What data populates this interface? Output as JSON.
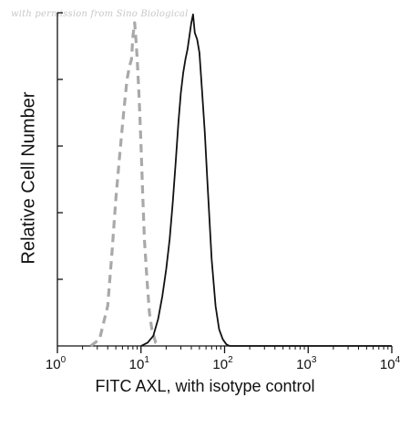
{
  "watermark": "with permission from Sino Biological",
  "chart_data": {
    "type": "line",
    "xlabel": "FITC AXL, with isotype control",
    "ylabel": "Relative Cell Number",
    "xscale": "log",
    "xlim": [
      1,
      10000
    ],
    "ylim": [
      0,
      1
    ],
    "grid": false,
    "x_ticks": [
      {
        "base": "10",
        "exp": "0",
        "value": 1
      },
      {
        "base": "10",
        "exp": "1",
        "value": 10
      },
      {
        "base": "10",
        "exp": "2",
        "value": 100
      },
      {
        "base": "10",
        "exp": "3",
        "value": 1000
      },
      {
        "base": "10",
        "exp": "4",
        "value": 10000
      }
    ],
    "series": [
      {
        "style": "dashed",
        "color": "#a9a9a9",
        "x": [
          2.5,
          3.2,
          4.0,
          4.5,
          5.0,
          5.6,
          6.2,
          6.8,
          7.3,
          7.7,
          8.0,
          8.4,
          8.7,
          9.0,
          9.3,
          9.6,
          10.0,
          10.5,
          11.0,
          11.8,
          12.6,
          13.5,
          15.0,
          17.0
        ],
        "y": [
          0.0,
          0.02,
          0.12,
          0.28,
          0.44,
          0.58,
          0.7,
          0.8,
          0.84,
          0.86,
          0.93,
          0.97,
          0.92,
          0.86,
          0.79,
          0.72,
          0.6,
          0.45,
          0.32,
          0.2,
          0.1,
          0.05,
          0.01,
          0.0
        ]
      },
      {
        "style": "solid",
        "color": "#111111",
        "x": [
          10,
          12,
          14,
          16,
          18,
          20,
          22,
          24,
          26,
          28,
          30,
          32,
          34,
          36,
          38,
          40,
          42,
          44,
          47,
          50,
          54,
          58,
          62,
          66,
          70,
          78,
          86,
          95,
          105,
          115,
          1000,
          10000
        ],
        "y": [
          0.0,
          0.01,
          0.03,
          0.08,
          0.15,
          0.23,
          0.32,
          0.43,
          0.55,
          0.67,
          0.76,
          0.82,
          0.86,
          0.89,
          0.93,
          0.97,
          0.995,
          0.94,
          0.92,
          0.88,
          0.76,
          0.64,
          0.5,
          0.38,
          0.26,
          0.12,
          0.05,
          0.02,
          0.005,
          0.0,
          0.0,
          0.0
        ]
      }
    ]
  }
}
